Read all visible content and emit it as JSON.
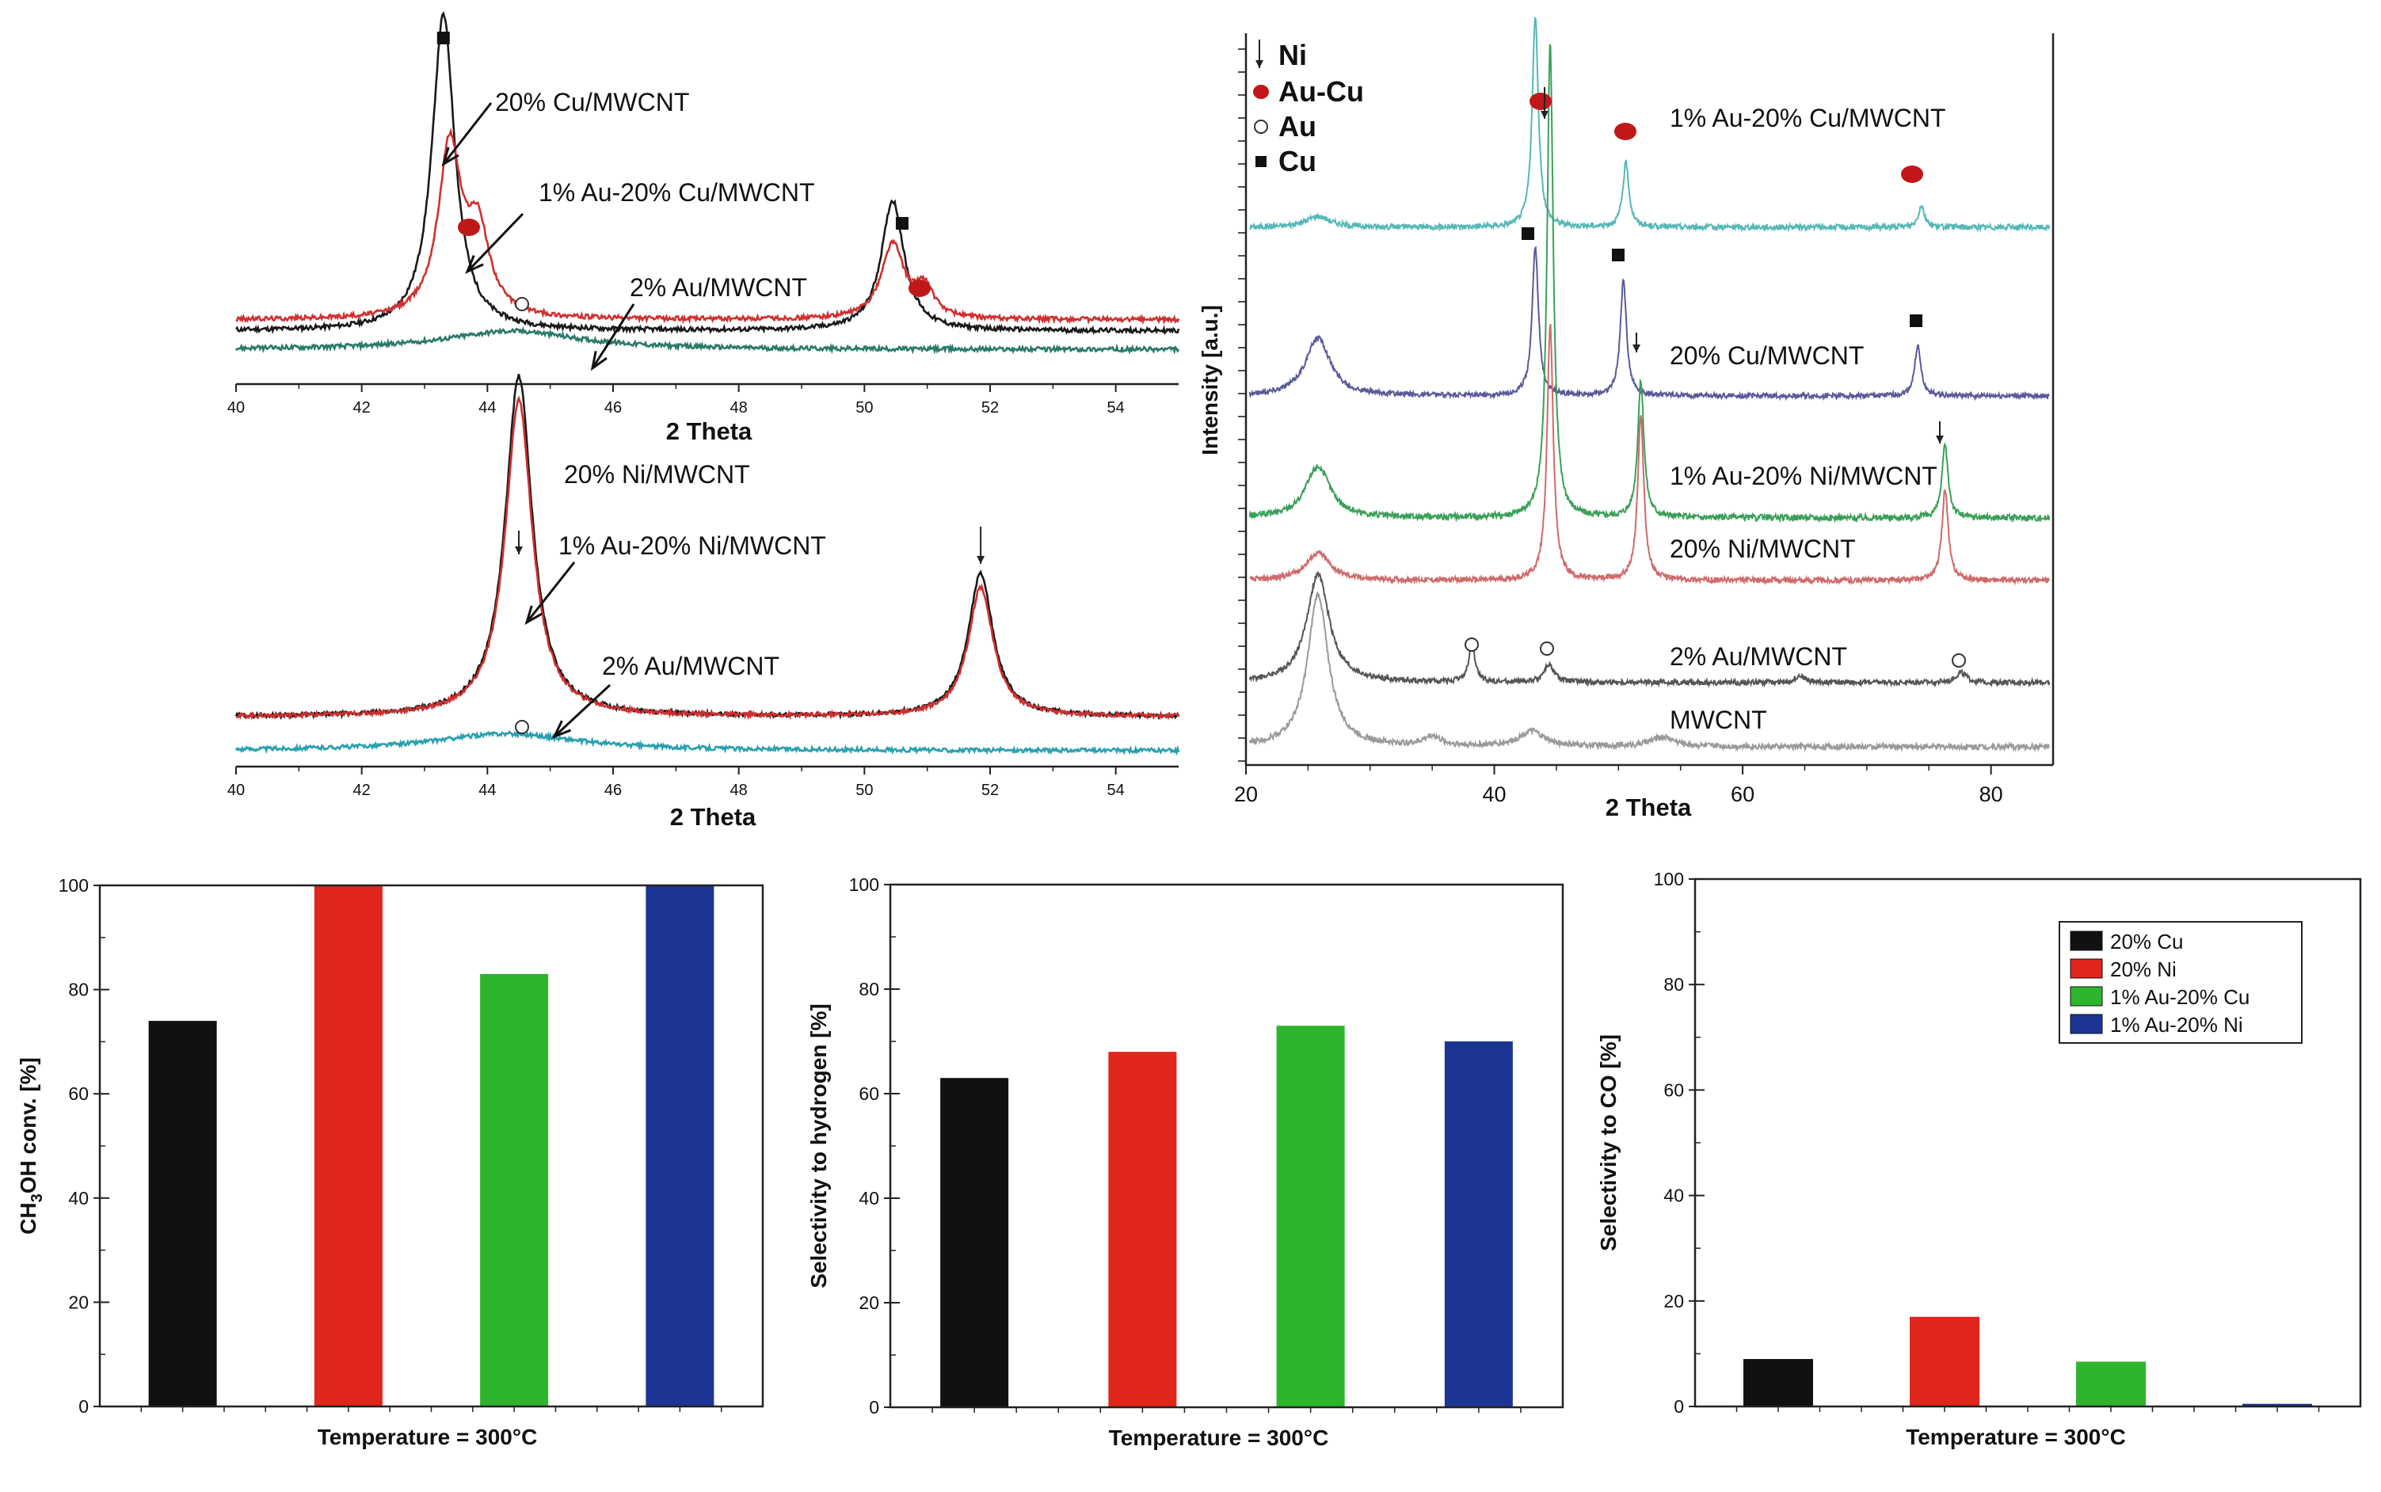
{
  "chart_data": [
    {
      "type": "line",
      "panel": "xrd-cu",
      "title": "",
      "xlabel": "2 Theta",
      "ylabel": "",
      "xlim": [
        40,
        55
      ],
      "xticks": [
        40,
        42,
        44,
        46,
        48,
        50,
        52,
        54
      ],
      "series": [
        {
          "name": "20% Cu/MWCNT",
          "color": "#1a1a1a",
          "base": 0.1,
          "peaks": [
            [
              43.3,
              0.85,
              0.22
            ],
            [
              50.45,
              0.35,
              0.22
            ]
          ]
        },
        {
          "name": "1% Au-20% Cu/MWCNT",
          "color": "#d03030",
          "base": 0.13,
          "peaks": [
            [
              43.4,
              0.46,
              0.22
            ],
            [
              43.85,
              0.22,
              0.22
            ],
            [
              50.45,
              0.2,
              0.22
            ],
            [
              50.95,
              0.08,
              0.18
            ]
          ]
        },
        {
          "name": "2% Au/MWCNT",
          "color": "#2a7a6a",
          "base": 0.05,
          "peaks": [
            [
              44.4,
              0.05,
              1.3
            ]
          ]
        }
      ],
      "annotations": [
        {
          "text": "20% Cu/MWCNT",
          "marker": "Cu"
        },
        {
          "text": "1% Au-20% Cu/MWCNT",
          "marker": "Au-Cu"
        },
        {
          "text": "2% Au/MWCNT",
          "marker": "Au"
        }
      ]
    },
    {
      "type": "line",
      "panel": "xrd-ni",
      "title": "",
      "xlabel": "2 Theta",
      "ylabel": "",
      "xlim": [
        40,
        55
      ],
      "xticks": [
        40,
        42,
        44,
        46,
        48,
        50,
        52,
        54
      ],
      "series": [
        {
          "name": "20% Ni/MWCNT",
          "color": "#1a1a1a",
          "base": 0.1,
          "peaks": [
            [
              44.5,
              1.0,
              0.26
            ],
            [
              51.85,
              0.42,
              0.24
            ]
          ]
        },
        {
          "name": "1% Au-20% Ni/MWCNT",
          "color": "#d03030",
          "base": 0.1,
          "peaks": [
            [
              44.5,
              0.93,
              0.26
            ],
            [
              51.85,
              0.38,
              0.24
            ]
          ]
        },
        {
          "name": "2% Au/MWCNT",
          "color": "#2aa0b0",
          "base": 0.0,
          "peaks": [
            [
              44.3,
              0.05,
              1.4
            ]
          ]
        }
      ],
      "annotations": [
        {
          "text": "20% Ni/MWCNT",
          "marker": "Ni"
        },
        {
          "text": "1% Au-20% Ni/MWCNT",
          "marker": "Ni"
        },
        {
          "text": "2% Au/MWCNT",
          "marker": "Au"
        }
      ]
    },
    {
      "type": "line",
      "panel": "xrd-full",
      "title": "",
      "xlabel": "2 Theta",
      "ylabel": "Intensity [a.u.]",
      "xlim": [
        20,
        85
      ],
      "xticks": [
        20,
        40,
        60,
        80
      ],
      "series": [
        {
          "name": "1% Au-20% Cu/MWCNT",
          "color": "#56b8b8",
          "offset": 5,
          "peaks": [
            [
              25.8,
              0.06,
              1.2
            ],
            [
              43.3,
              1.15,
              0.3
            ],
            [
              50.6,
              0.35,
              0.3
            ],
            [
              74.4,
              0.12,
              0.3
            ]
          ]
        },
        {
          "name": "20% Cu/MWCNT",
          "color": "#5a5a9a",
          "offset": 4,
          "peaks": [
            [
              25.8,
              0.35,
              1.2
            ],
            [
              43.3,
              0.9,
              0.3
            ],
            [
              50.4,
              0.7,
              0.3
            ],
            [
              74.1,
              0.3,
              0.3
            ]
          ]
        },
        {
          "name": "1% Au-20% Ni/MWCNT",
          "color": "#3aa058",
          "offset": 3,
          "peaks": [
            [
              25.8,
              0.25,
              1.2
            ],
            [
              44.5,
              2.3,
              0.3
            ],
            [
              51.8,
              0.66,
              0.3
            ],
            [
              76.3,
              0.35,
              0.3
            ]
          ]
        },
        {
          "name": "20% Ni/MWCNT",
          "color": "#d06a6a",
          "offset": 2,
          "peaks": [
            [
              25.8,
              0.15,
              1.2
            ],
            [
              44.5,
              1.4,
              0.3
            ],
            [
              51.8,
              0.9,
              0.3
            ],
            [
              76.3,
              0.5,
              0.3
            ]
          ]
        },
        {
          "name": "2% Au/MWCNT",
          "color": "#555555",
          "offset": 1,
          "peaks": [
            [
              25.8,
              0.62,
              1.1
            ],
            [
              38.2,
              0.22,
              0.3
            ],
            [
              44.4,
              0.1,
              0.5
            ],
            [
              64.6,
              0.04,
              0.5
            ],
            [
              77.6,
              0.06,
              0.5
            ]
          ]
        },
        {
          "name": "MWCNT",
          "color": "#9a9a9a",
          "offset": 0,
          "peaks": [
            [
              25.8,
              0.8,
              1.0
            ],
            [
              35,
              0.05,
              0.8
            ],
            [
              43,
              0.08,
              1.2
            ],
            [
              53.6,
              0.05,
              1.2
            ]
          ]
        }
      ],
      "legend": [
        {
          "symbol": "arrow",
          "label": "Ni"
        },
        {
          "symbol": "red-dot",
          "label": "Au-Cu"
        },
        {
          "symbol": "open-circle",
          "label": "Au"
        },
        {
          "symbol": "black-square",
          "label": "Cu"
        }
      ]
    },
    {
      "type": "bar",
      "panel": "conversion",
      "categories": [
        "20% Cu",
        "20% Ni",
        "1% Au-20% Cu",
        "1% Au-20% Ni"
      ],
      "values": [
        74,
        100,
        83,
        100
      ],
      "colors": [
        "#111111",
        "#e0251b",
        "#2db52d",
        "#1c3493"
      ],
      "title": "",
      "xlabel": "Temperature = 300°C",
      "ylabel_pre": "CH",
      "ylabel_sub1": "3",
      "ylabel_mid": "OH conv. [%]",
      "ylim": [
        0,
        100
      ],
      "yticks": [
        0,
        20,
        40,
        60,
        80,
        100
      ]
    },
    {
      "type": "bar",
      "panel": "h2-selectivity",
      "categories": [
        "20% Cu",
        "20% Ni",
        "1% Au-20% Cu",
        "1% Au-20% Ni"
      ],
      "values": [
        63,
        68,
        73,
        70
      ],
      "colors": [
        "#111111",
        "#e0251b",
        "#2db52d",
        "#1c3493"
      ],
      "title": "",
      "xlabel": "Temperature = 300°C",
      "ylabel": "Selectivity to hydrogen [%]",
      "ylim": [
        0,
        100
      ],
      "yticks": [
        0,
        20,
        40,
        60,
        80,
        100
      ]
    },
    {
      "type": "bar",
      "panel": "co-selectivity",
      "categories": [
        "20% Cu",
        "20% Ni",
        "1% Au-20% Cu",
        "1% Au-20% Ni"
      ],
      "values": [
        9,
        17,
        8.5,
        0.5
      ],
      "colors": [
        "#111111",
        "#e0251b",
        "#2db52d",
        "#1c3493"
      ],
      "title": "",
      "xlabel": "Temperature = 300°C",
      "ylabel": "Selectivity to CO [%]",
      "ylim": [
        0,
        100
      ],
      "yticks": [
        0,
        20,
        40,
        60,
        80,
        100
      ],
      "legend": [
        "20% Cu",
        "20% Ni",
        "1% Au-20% Cu",
        "1% Au-20% Ni"
      ]
    }
  ],
  "colors": {
    "black": "#111111",
    "red": "#e0251b",
    "green": "#2db52d",
    "blue": "#1c3493",
    "au_cu_marker": "#c01818"
  }
}
